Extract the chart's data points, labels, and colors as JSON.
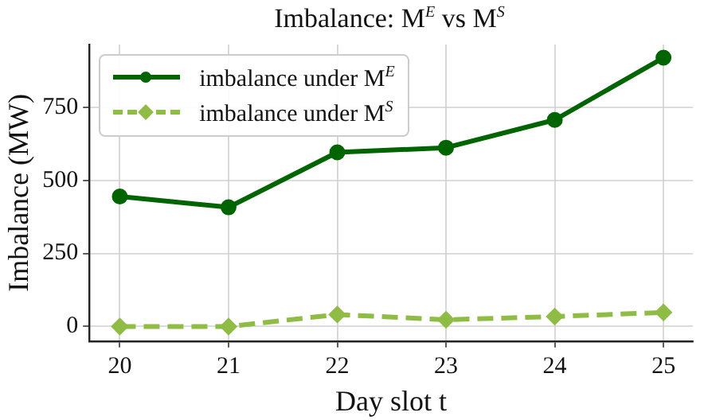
{
  "chart_data": {
    "type": "line",
    "title": "Imbalance: M$^{E}$ vs M$^{S}$",
    "xlabel": "Day slot t",
    "ylabel": "Imbalance (MW)",
    "x": [
      20,
      21,
      22,
      23,
      24,
      25
    ],
    "series": [
      {
        "name": "imbalance under M$^{E}$",
        "color": "#006400",
        "values": [
          445,
          408,
          596,
          612,
          707,
          920
        ],
        "marker": "circle",
        "line_style": "solid"
      },
      {
        "name": "imbalance under M$^{S}$",
        "color": "#8fbc45",
        "values": [
          0,
          0,
          41,
          23,
          34,
          48
        ],
        "marker": "diamond",
        "line_style": "dashed"
      }
    ],
    "xlim": [
      19.72,
      25.27
    ],
    "xticks": [
      20,
      21,
      22,
      23,
      24,
      25
    ],
    "ylim": [
      -50,
      965
    ],
    "yticks": [
      0,
      250,
      500,
      750
    ],
    "grid": true,
    "legend": "top left"
  }
}
